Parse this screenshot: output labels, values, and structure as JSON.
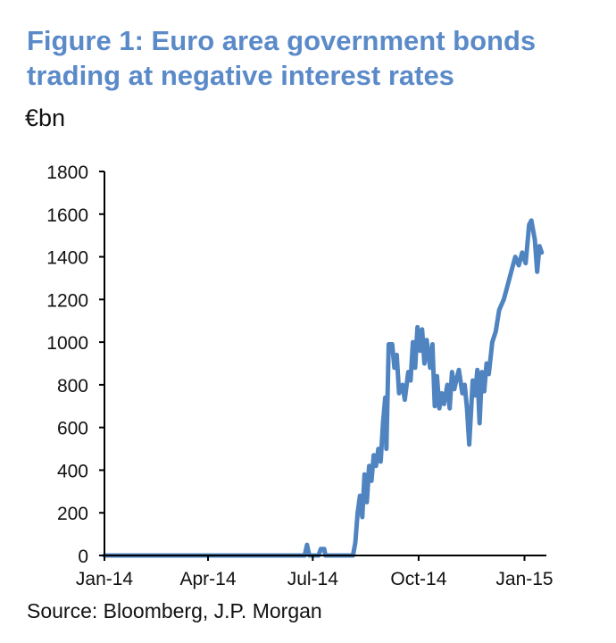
{
  "header": {
    "title_line1": "Figure 1: Euro area government bonds",
    "title_line2": "trading at negative interest rates",
    "unit": "€bn"
  },
  "footer": {
    "source": "Source: Bloomberg, J.P. Morgan"
  },
  "colors": {
    "title": "#5b8ac9",
    "line": "#4f84c0",
    "axis": "#000000"
  },
  "chart_data": {
    "type": "line",
    "title": "Figure 1: Euro area government bonds trading at negative interest rates",
    "ylabel": "€bn",
    "xlabel": "",
    "ylim": [
      0,
      1800
    ],
    "xlim": [
      "2014-01-01",
      "2015-01-20"
    ],
    "grid": false,
    "legend": "none",
    "y_ticks": [
      0,
      200,
      400,
      600,
      800,
      1000,
      1200,
      1400,
      1600,
      1800
    ],
    "x_ticks": [
      {
        "label": "Jan-14",
        "date": "2014-01-01"
      },
      {
        "label": "Apr-14",
        "date": "2014-04-01"
      },
      {
        "label": "Jul-14",
        "date": "2014-07-01"
      },
      {
        "label": "Oct-14",
        "date": "2014-10-01"
      },
      {
        "label": "Jan-15",
        "date": "2015-01-01"
      }
    ],
    "series": [
      {
        "points": [
          [
            "2014-01-01",
            0
          ],
          [
            "2014-06-24",
            0
          ],
          [
            "2014-06-26",
            50
          ],
          [
            "2014-06-28",
            0
          ],
          [
            "2014-07-06",
            0
          ],
          [
            "2014-07-08",
            30
          ],
          [
            "2014-07-11",
            30
          ],
          [
            "2014-07-12",
            0
          ],
          [
            "2014-08-05",
            0
          ],
          [
            "2014-08-07",
            60
          ],
          [
            "2014-08-09",
            200
          ],
          [
            "2014-08-11",
            280
          ],
          [
            "2014-08-13",
            180
          ],
          [
            "2014-08-15",
            380
          ],
          [
            "2014-08-17",
            250
          ],
          [
            "2014-08-19",
            420
          ],
          [
            "2014-08-21",
            350
          ],
          [
            "2014-08-23",
            470
          ],
          [
            "2014-08-25",
            420
          ],
          [
            "2014-08-27",
            500
          ],
          [
            "2014-08-29",
            440
          ],
          [
            "2014-08-31",
            620
          ],
          [
            "2014-09-02",
            740
          ],
          [
            "2014-09-03",
            500
          ],
          [
            "2014-09-05",
            990
          ],
          [
            "2014-09-08",
            990
          ],
          [
            "2014-09-10",
            880
          ],
          [
            "2014-09-12",
            940
          ],
          [
            "2014-09-14",
            760
          ],
          [
            "2014-09-17",
            800
          ],
          [
            "2014-09-19",
            730
          ],
          [
            "2014-09-22",
            860
          ],
          [
            "2014-09-24",
            820
          ],
          [
            "2014-09-26",
            1000
          ],
          [
            "2014-09-28",
            880
          ],
          [
            "2014-09-30",
            1070
          ],
          [
            "2014-10-02",
            960
          ],
          [
            "2014-10-04",
            1060
          ],
          [
            "2014-10-06",
            900
          ],
          [
            "2014-10-08",
            1010
          ],
          [
            "2014-10-11",
            880
          ],
          [
            "2014-10-13",
            990
          ],
          [
            "2014-10-15",
            700
          ],
          [
            "2014-10-17",
            840
          ],
          [
            "2014-10-19",
            690
          ],
          [
            "2014-10-21",
            760
          ],
          [
            "2014-10-23",
            710
          ],
          [
            "2014-10-26",
            800
          ],
          [
            "2014-10-28",
            690
          ],
          [
            "2014-10-30",
            860
          ],
          [
            "2014-11-01",
            780
          ],
          [
            "2014-11-03",
            830
          ],
          [
            "2014-11-05",
            870
          ],
          [
            "2014-11-08",
            760
          ],
          [
            "2014-11-10",
            800
          ],
          [
            "2014-11-12",
            690
          ],
          [
            "2014-11-14",
            520
          ],
          [
            "2014-11-17",
            820
          ],
          [
            "2014-11-19",
            750
          ],
          [
            "2014-11-21",
            870
          ],
          [
            "2014-11-23",
            620
          ],
          [
            "2014-11-25",
            860
          ],
          [
            "2014-11-27",
            770
          ],
          [
            "2014-11-29",
            900
          ],
          [
            "2014-12-01",
            850
          ],
          [
            "2014-12-04",
            1000
          ],
          [
            "2014-12-07",
            1050
          ],
          [
            "2014-12-10",
            1150
          ],
          [
            "2014-12-14",
            1200
          ],
          [
            "2014-12-17",
            1260
          ],
          [
            "2014-12-21",
            1340
          ],
          [
            "2014-12-24",
            1400
          ],
          [
            "2014-12-27",
            1360
          ],
          [
            "2014-12-30",
            1420
          ],
          [
            "2015-01-02",
            1370
          ],
          [
            "2015-01-05",
            1550
          ],
          [
            "2015-01-07",
            1570
          ],
          [
            "2015-01-10",
            1480
          ],
          [
            "2015-01-12",
            1330
          ],
          [
            "2015-01-14",
            1450
          ],
          [
            "2015-01-16",
            1420
          ]
        ]
      }
    ]
  }
}
